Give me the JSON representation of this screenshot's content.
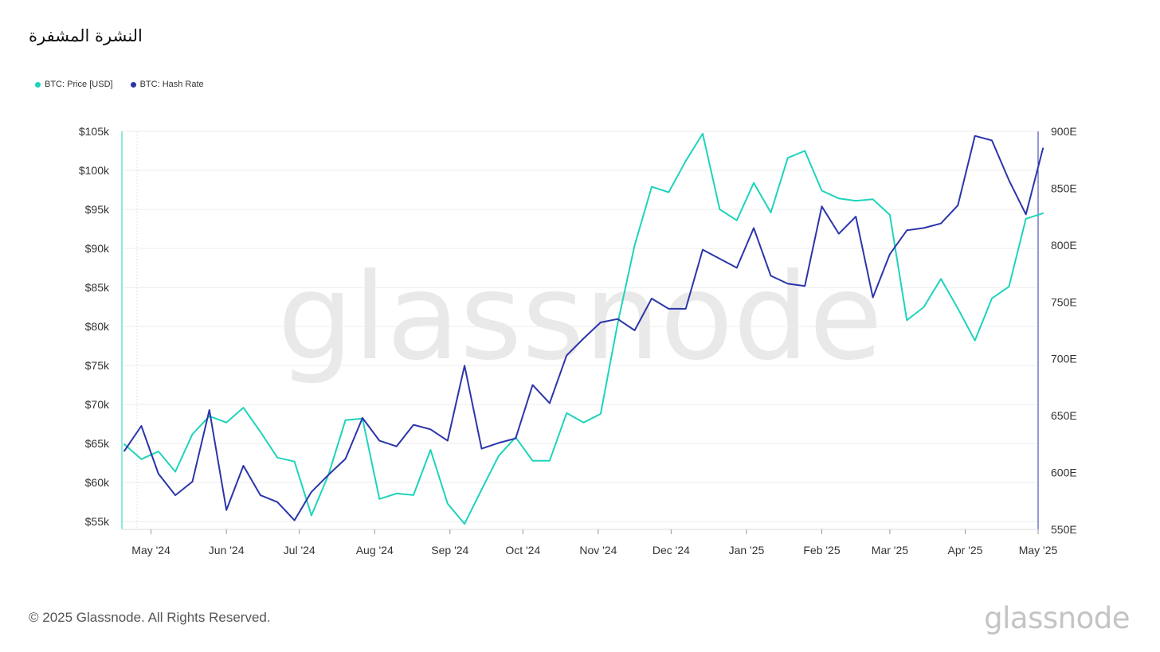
{
  "page": {
    "title": "النشرة المشفرة",
    "footer": "© 2025 Glassnode. All Rights Reserved.",
    "brand": "glassnode",
    "watermark": "glassnode"
  },
  "chart_data": {
    "type": "line",
    "title": "",
    "legend_position": "top-left",
    "grid": true,
    "x_range": [
      "2024-04-19",
      "2025-05-01"
    ],
    "x_tick_labels": [
      "May '24",
      "Jun '24",
      "Jul '24",
      "Aug '24",
      "Sep '24",
      "Oct '24",
      "Nov '24",
      "Dec '24",
      "Jan '25",
      "Feb '25",
      "Mar '25",
      "Apr '25",
      "May '25"
    ],
    "x_ticks": [
      "2024-05-01",
      "2024-06-01",
      "2024-07-01",
      "2024-08-01",
      "2024-09-01",
      "2024-10-01",
      "2024-11-01",
      "2024-12-01",
      "2025-01-01",
      "2025-02-01",
      "2025-03-01",
      "2025-04-01",
      "2025-05-01"
    ],
    "y_left": {
      "min": 54000,
      "max": 105000,
      "ticks": [
        55000,
        60000,
        65000,
        70000,
        75000,
        80000,
        85000,
        90000,
        95000,
        100000,
        105000
      ],
      "tick_labels": [
        "$55k",
        "$60k",
        "$65k",
        "$70k",
        "$75k",
        "$80k",
        "$85k",
        "$90k",
        "$95k",
        "$100k",
        "$105k"
      ]
    },
    "y_right": {
      "min": 550,
      "max": 900,
      "ticks": [
        550,
        600,
        650,
        700,
        750,
        800,
        850,
        900
      ],
      "tick_labels": [
        "550E",
        "600E",
        "650E",
        "700E",
        "750E",
        "800E",
        "850E",
        "900E"
      ]
    },
    "series": [
      {
        "name": "BTC: Price [USD]",
        "color": "#1dd4bb",
        "axis": "left",
        "points": [
          [
            "2024-04-20",
            64900
          ],
          [
            "2024-04-27",
            63000
          ],
          [
            "2024-05-04",
            64000
          ],
          [
            "2024-05-11",
            61400
          ],
          [
            "2024-05-18",
            66200
          ],
          [
            "2024-05-25",
            68500
          ],
          [
            "2024-06-01",
            67700
          ],
          [
            "2024-06-08",
            69600
          ],
          [
            "2024-06-15",
            66500
          ],
          [
            "2024-06-22",
            63200
          ],
          [
            "2024-06-29",
            62700
          ],
          [
            "2024-07-06",
            55800
          ],
          [
            "2024-07-13",
            61000
          ],
          [
            "2024-07-20",
            68000
          ],
          [
            "2024-07-27",
            68200
          ],
          [
            "2024-08-03",
            57900
          ],
          [
            "2024-08-10",
            58600
          ],
          [
            "2024-08-17",
            58400
          ],
          [
            "2024-08-24",
            64200
          ],
          [
            "2024-08-31",
            57300
          ],
          [
            "2024-09-07",
            54700
          ],
          [
            "2024-09-14",
            59100
          ],
          [
            "2024-09-21",
            63400
          ],
          [
            "2024-09-28",
            65800
          ],
          [
            "2024-10-05",
            62800
          ],
          [
            "2024-10-12",
            62800
          ],
          [
            "2024-10-19",
            68900
          ],
          [
            "2024-10-26",
            67700
          ],
          [
            "2024-11-02",
            68800
          ],
          [
            "2024-11-09",
            80400
          ],
          [
            "2024-11-16",
            90400
          ],
          [
            "2024-11-23",
            97900
          ],
          [
            "2024-11-30",
            97200
          ],
          [
            "2024-12-07",
            101200
          ],
          [
            "2024-12-14",
            104700
          ],
          [
            "2024-12-21",
            95000
          ],
          [
            "2024-12-28",
            93600
          ],
          [
            "2025-01-04",
            98400
          ],
          [
            "2025-01-11",
            94600
          ],
          [
            "2025-01-18",
            101600
          ],
          [
            "2025-01-25",
            102500
          ],
          [
            "2025-02-01",
            97400
          ],
          [
            "2025-02-08",
            96400
          ],
          [
            "2025-02-15",
            96100
          ],
          [
            "2025-02-22",
            96300
          ],
          [
            "2025-03-01",
            94300
          ],
          [
            "2025-03-08",
            80800
          ],
          [
            "2025-03-15",
            82500
          ],
          [
            "2025-03-22",
            86100
          ],
          [
            "2025-03-29",
            82300
          ],
          [
            "2025-04-05",
            78200
          ],
          [
            "2025-04-12",
            83600
          ],
          [
            "2025-04-19",
            85100
          ],
          [
            "2025-04-26",
            93800
          ],
          [
            "2025-05-03",
            94500
          ]
        ]
      },
      {
        "name": "BTC: Hash Rate",
        "color": "#2b35aa",
        "axis": "right",
        "points": [
          [
            "2024-04-20",
            619
          ],
          [
            "2024-04-27",
            641
          ],
          [
            "2024-05-04",
            599
          ],
          [
            "2024-05-11",
            580
          ],
          [
            "2024-05-18",
            592
          ],
          [
            "2024-05-25",
            655
          ],
          [
            "2024-06-01",
            567
          ],
          [
            "2024-06-08",
            606
          ],
          [
            "2024-06-15",
            580
          ],
          [
            "2024-06-22",
            574
          ],
          [
            "2024-06-29",
            558
          ],
          [
            "2024-07-06",
            583
          ],
          [
            "2024-07-13",
            598
          ],
          [
            "2024-07-20",
            612
          ],
          [
            "2024-07-27",
            648
          ],
          [
            "2024-08-03",
            628
          ],
          [
            "2024-08-10",
            623
          ],
          [
            "2024-08-17",
            642
          ],
          [
            "2024-08-24",
            638
          ],
          [
            "2024-08-31",
            628
          ],
          [
            "2024-09-07",
            694
          ],
          [
            "2024-09-14",
            621
          ],
          [
            "2024-09-21",
            626
          ],
          [
            "2024-09-28",
            630
          ],
          [
            "2024-10-05",
            677
          ],
          [
            "2024-10-12",
            661
          ],
          [
            "2024-10-19",
            703
          ],
          [
            "2024-10-26",
            718
          ],
          [
            "2024-11-02",
            732
          ],
          [
            "2024-11-09",
            735
          ],
          [
            "2024-11-16",
            725
          ],
          [
            "2024-11-23",
            753
          ],
          [
            "2024-11-30",
            744
          ],
          [
            "2024-12-07",
            744
          ],
          [
            "2024-12-14",
            796
          ],
          [
            "2024-12-21",
            788
          ],
          [
            "2024-12-28",
            780
          ],
          [
            "2025-01-04",
            815
          ],
          [
            "2025-01-11",
            773
          ],
          [
            "2025-01-18",
            766
          ],
          [
            "2025-01-25",
            764
          ],
          [
            "2025-02-01",
            834
          ],
          [
            "2025-02-08",
            810
          ],
          [
            "2025-02-15",
            825
          ],
          [
            "2025-02-22",
            754
          ],
          [
            "2025-03-01",
            792
          ],
          [
            "2025-03-08",
            813
          ],
          [
            "2025-03-15",
            815
          ],
          [
            "2025-03-22",
            819
          ],
          [
            "2025-03-29",
            835
          ],
          [
            "2025-04-05",
            896
          ],
          [
            "2025-04-12",
            892
          ],
          [
            "2025-04-19",
            857
          ],
          [
            "2025-04-26",
            827
          ],
          [
            "2025-05-03",
            885
          ]
        ]
      }
    ]
  }
}
